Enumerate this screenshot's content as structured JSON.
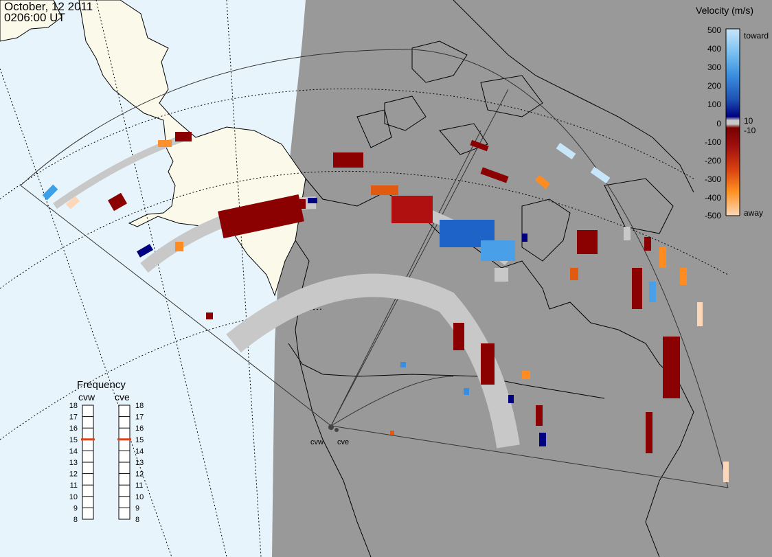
{
  "header": {
    "date": "October, 12 2011",
    "time": "0206:00 UT"
  },
  "colors": {
    "ocean": "#e8f4fc",
    "night": "#999999",
    "land_day": "#fbfaea",
    "ground_scatter": "#c8c8c8",
    "coast": "#000000"
  },
  "velocity_legend": {
    "title": "Velocity (m/s)",
    "toward_label": "toward",
    "away_label": "away",
    "ticks": [
      "500",
      "400",
      "300",
      "200",
      "100",
      "10",
      "0",
      "-10",
      "-100",
      "-200",
      "-300",
      "-400",
      "-500"
    ]
  },
  "frequency_legend": {
    "title": "Frequency",
    "radar_left": "cvw",
    "radar_right": "cve",
    "ticks": [
      "18",
      "17",
      "16",
      "15",
      "14",
      "13",
      "12",
      "11",
      "10",
      "9",
      "8"
    ],
    "cvw_freq": 15,
    "cve_freq": 15,
    "marker_color": "#e0401a"
  },
  "radars": [
    {
      "code": "cvw",
      "label": "cvw"
    },
    {
      "code": "cve",
      "label": "cve"
    }
  ]
}
